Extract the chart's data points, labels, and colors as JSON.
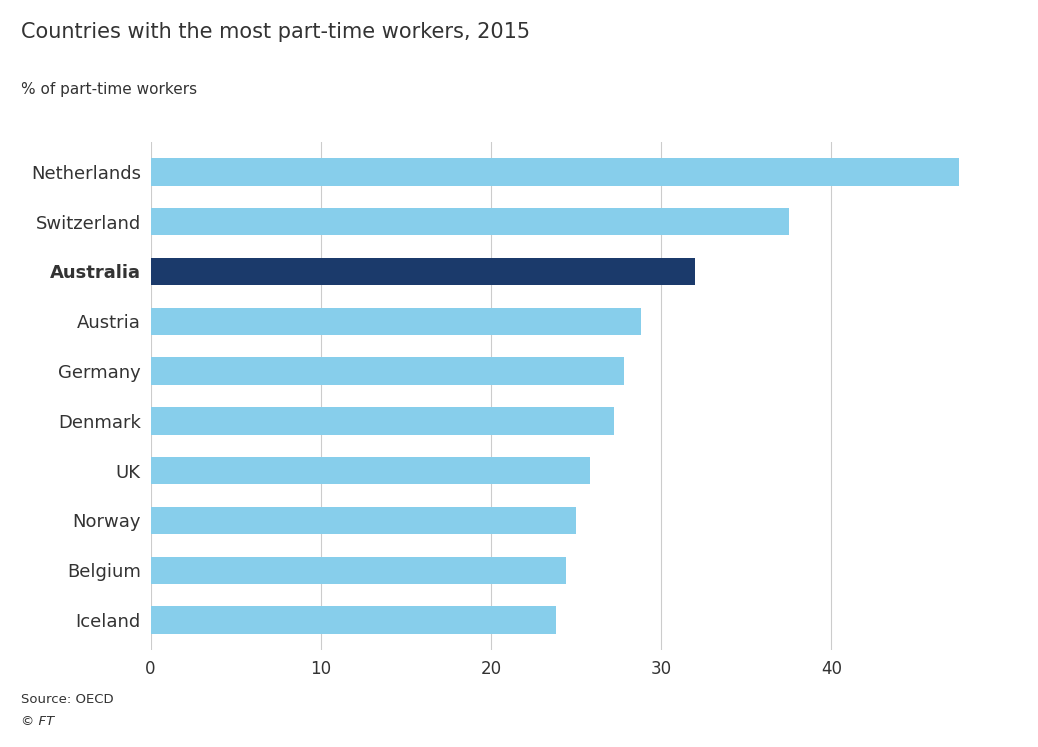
{
  "title": "Countries with the most part-time workers, 2015",
  "ylabel": "% of part-time workers",
  "source": "Source: OECD",
  "copyright": "© FT",
  "categories": [
    "Netherlands",
    "Switzerland",
    "Australia",
    "Austria",
    "Germany",
    "Denmark",
    "UK",
    "Norway",
    "Belgium",
    "Iceland"
  ],
  "values": [
    47.5,
    37.5,
    32.0,
    28.8,
    27.8,
    27.2,
    25.8,
    25.0,
    24.4,
    23.8
  ],
  "bar_colors": [
    "#87CEEB",
    "#87CEEB",
    "#1B3A6B",
    "#87CEEB",
    "#87CEEB",
    "#87CEEB",
    "#87CEEB",
    "#87CEEB",
    "#87CEEB",
    "#87CEEB"
  ],
  "light_blue": "#87CEEB",
  "dark_blue": "#1B3A6B",
  "background_color": "#ffffff",
  "text_color": "#333333",
  "title_color": "#333333",
  "xlim": [
    0,
    50
  ],
  "xticks": [
    0,
    10,
    20,
    30,
    40
  ],
  "grid_color": "#cccccc",
  "bar_height": 0.55
}
